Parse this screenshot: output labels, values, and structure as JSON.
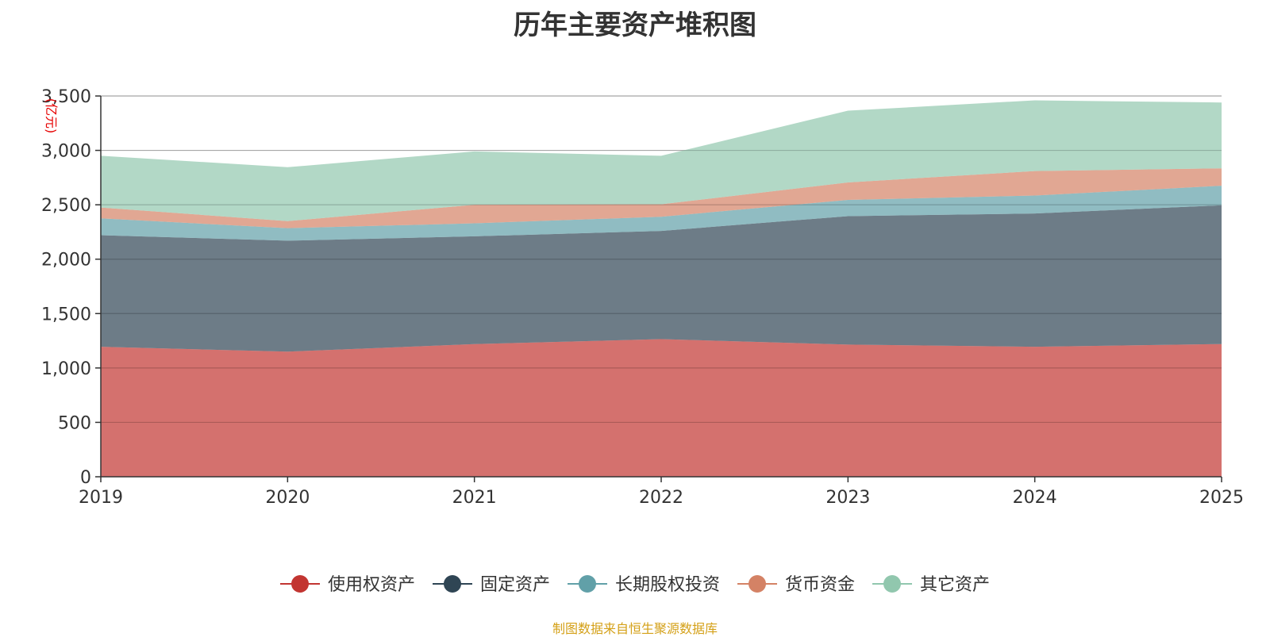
{
  "chart_data": {
    "type": "area",
    "stacked": true,
    "title": "历年主要资产堆积图",
    "unit": "(亿元)",
    "x": [
      "2019",
      "2020",
      "2021",
      "2022",
      "2023",
      "2024",
      "2025"
    ],
    "ylim": [
      0,
      3500
    ],
    "yticks": [
      0,
      500,
      1000,
      1500,
      2000,
      2500,
      3000,
      3500
    ],
    "ytick_labels": [
      "0",
      "500",
      "1,000",
      "1,500",
      "2,000",
      "2,500",
      "3,000",
      "3,500"
    ],
    "grid": true,
    "legend_position": "bottom",
    "series": [
      {
        "name": "使用权资产",
        "color": "#c23531",
        "values": [
          1195,
          1150,
          1220,
          1265,
          1215,
          1195,
          1220
        ]
      },
      {
        "name": "固定资产",
        "color": "#2f4554",
        "values": [
          1025,
          1020,
          990,
          995,
          1180,
          1225,
          1275
        ]
      },
      {
        "name": "长期股权投资",
        "color": "#61a0a8",
        "values": [
          155,
          115,
          120,
          130,
          150,
          165,
          180
        ]
      },
      {
        "name": "货币资金",
        "color": "#d48265",
        "values": [
          100,
          65,
          170,
          115,
          160,
          225,
          160
        ]
      },
      {
        "name": "其它资产",
        "color": "#91c7ae",
        "values": [
          475,
          495,
          490,
          445,
          660,
          650,
          605
        ]
      }
    ]
  },
  "footer": {
    "source": "制图数据来自恒生聚源数据库"
  }
}
